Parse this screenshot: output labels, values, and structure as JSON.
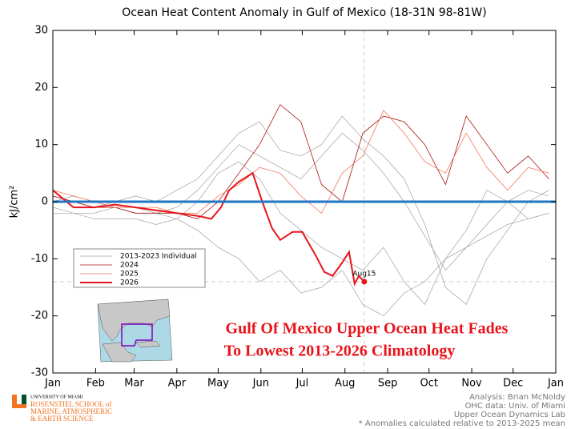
{
  "chart_data": {
    "type": "line",
    "title": "Ocean Heat Content Anomaly in Gulf of Mexico (18-31N 98-81W)",
    "y_label": "kJ/cm²",
    "xlim": [
      0,
      365
    ],
    "xticks": [
      {
        "value": 0,
        "label": "Jan"
      },
      {
        "value": 31,
        "label": "Feb"
      },
      {
        "value": 59,
        "label": "Mar"
      },
      {
        "value": 90,
        "label": "Apr"
      },
      {
        "value": 120,
        "label": "May"
      },
      {
        "value": 151,
        "label": "Jun"
      },
      {
        "value": 181,
        "label": "Jul"
      },
      {
        "value": 212,
        "label": "Aug"
      },
      {
        "value": 243,
        "label": "Sep"
      },
      {
        "value": 273,
        "label": "Oct"
      },
      {
        "value": 304,
        "label": "Nov"
      },
      {
        "value": 334,
        "label": "Dec"
      },
      {
        "value": 365,
        "label": "Jan"
      }
    ],
    "ylim": [
      -30,
      30
    ],
    "yticks": [
      -30,
      -20,
      -10,
      0,
      10,
      20,
      30
    ],
    "x": [
      0,
      15,
      30,
      45,
      60,
      75,
      90,
      105,
      120,
      135,
      150,
      165,
      180,
      195,
      210,
      225,
      240,
      255,
      270,
      285,
      300,
      315,
      330,
      345,
      360
    ],
    "series": [
      {
        "name": "2013-2023 Individual",
        "color": "#a0a0a0",
        "lines": [
          [
            -1,
            -2,
            -2,
            -1,
            -1,
            -2,
            -3,
            0,
            5,
            7,
            4,
            -2,
            -5,
            -8,
            -10,
            -12,
            -8,
            -14,
            -18,
            -10,
            -5,
            2,
            0,
            -3,
            -2
          ],
          [
            0,
            1,
            0,
            -1,
            -2,
            -2,
            -1,
            2,
            6,
            10,
            8,
            6,
            4,
            8,
            12,
            9,
            5,
            0,
            -6,
            -12,
            -8,
            -4,
            0,
            2,
            1
          ],
          [
            -2,
            -2,
            -3,
            -3,
            -3,
            -4,
            -3,
            -5,
            -8,
            -10,
            -14,
            -12,
            -16,
            -15,
            -12,
            -18,
            -20,
            -16,
            -14,
            -10,
            -8,
            -6,
            -4,
            -3,
            -2
          ],
          [
            1,
            0,
            -1,
            0,
            1,
            0,
            2,
            4,
            8,
            12,
            14,
            9,
            8,
            10,
            15,
            11,
            8,
            4,
            -4,
            -15,
            -18,
            -10,
            -5,
            0,
            2
          ]
        ]
      },
      {
        "name": "2024",
        "color": "#a8140e",
        "values": [
          1,
          0,
          -1,
          -1,
          -2,
          -2,
          -2,
          -3,
          0,
          5,
          10,
          17,
          14,
          3,
          0,
          12,
          15,
          14,
          10,
          3,
          15,
          10,
          5,
          8,
          4
        ]
      },
      {
        "name": "2025",
        "color": "#f07a5a",
        "values": [
          2,
          1,
          0,
          -1,
          -1,
          -1,
          -2,
          -2,
          1,
          3,
          6,
          5,
          1,
          -2,
          5,
          8,
          16,
          12,
          7,
          5,
          12,
          6,
          2,
          6,
          5
        ]
      },
      {
        "name": "2026",
        "color": "#e8141b",
        "x": [
          0,
          5,
          15,
          30,
          45,
          60,
          75,
          90,
          105,
          115,
          122,
          128,
          135,
          145,
          152,
          159,
          165,
          174,
          181,
          191,
          197,
          203,
          209,
          215,
          219,
          222,
          226
        ],
        "values": [
          2,
          1,
          -1,
          -1,
          -0.5,
          -1,
          -1.5,
          -2,
          -2.5,
          -3,
          -1,
          2,
          3.5,
          5,
          0,
          -4.6,
          -6.7,
          -5.3,
          -5.3,
          -9.5,
          -12.3,
          -13,
          -11,
          -8.8,
          -14.4,
          -13,
          -14
        ]
      }
    ],
    "mean_line": {
      "value": 0,
      "color": "#1f77c4"
    },
    "annotation": {
      "label": "Aug15",
      "x": 226,
      "y": -14
    },
    "headline": [
      "Gulf Of Mexico Upper Ocean Heat Fades",
      "To Lowest 2013-2026 Climatology"
    ],
    "credits": [
      "Analysis: Brian McNoldy",
      "OHC data: Univ. of Miami",
      "Upper Ocean Dynamics Lab",
      "* Anomalies calculated relative to 2013-2025 mean"
    ],
    "logo": [
      "UNIVERSITY OF MIAMI",
      "ROSENSTIEL SCHOOL of",
      "MARINE, ATMOSPHERIC",
      "& EARTH SCIENCE"
    ]
  }
}
